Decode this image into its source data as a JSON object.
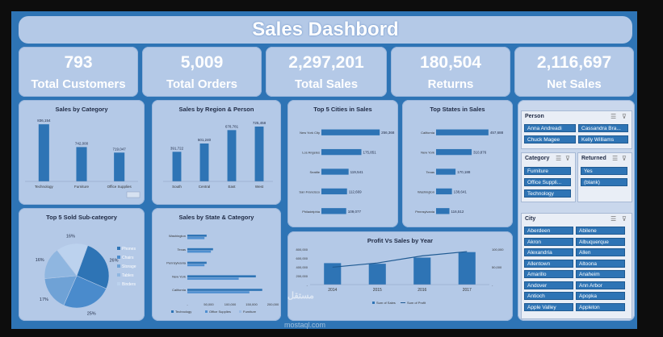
{
  "title": "Sales Dashbord",
  "kpis": [
    {
      "value": "793",
      "label": "Total Customers"
    },
    {
      "value": "5,009",
      "label": "Total Orders"
    },
    {
      "value": "2,297,201",
      "label": "Total Sales"
    },
    {
      "value": "180,504",
      "label": "Returns"
    },
    {
      "value": "2,116,697",
      "label": "Net Sales"
    }
  ],
  "colors": {
    "bar": "#2e74b5",
    "card": "#b4c9e7",
    "frame": "#2e74b5"
  },
  "chart_data": [
    {
      "type": "bar",
      "title": "Sales by Category",
      "categories": [
        "Technology",
        "Furniture",
        "Office Supplies"
      ],
      "values": [
        836154,
        742000,
        719047
      ],
      "labels": [
        "836,154",
        "742,000",
        "719,047"
      ],
      "ylim": [
        600000,
        850000
      ]
    },
    {
      "type": "bar",
      "title": "Sales by Region & Person",
      "categories": [
        "South",
        "Central",
        "East",
        "West"
      ],
      "values": [
        391722,
        501240,
        678781,
        725458
      ],
      "labels": [
        "391,722",
        "501,240",
        "678,781",
        "725,458"
      ],
      "ylim": [
        0,
        800000
      ]
    },
    {
      "type": "bar",
      "orientation": "horizontal",
      "title": "Top 5 Cities in Sales",
      "categories": [
        "New York City",
        "Los Angeles",
        "Seattle",
        "San Francisco",
        "Philadelphia"
      ],
      "values": [
        256368,
        175851,
        119541,
        112669,
        109077
      ],
      "labels": [
        "256,368",
        "175,851",
        "119,541",
        "112,669",
        "109,077"
      ],
      "xlim": [
        0,
        270000
      ]
    },
    {
      "type": "bar",
      "orientation": "horizontal",
      "title": "Top  States in Sales",
      "categories": [
        "California",
        "New York",
        "Texas",
        "Washington",
        "Pennsylvania"
      ],
      "values": [
        457688,
        310876,
        170188,
        138641,
        116512
      ],
      "labels": [
        "457,688",
        "310,876",
        "170,188",
        "138,641",
        "116,512"
      ],
      "xlim": [
        0,
        480000
      ]
    },
    {
      "type": "pie",
      "title": "Top 5 Sold Sub-category",
      "categories": [
        "Phones",
        "Chairs",
        "Storage",
        "Tables",
        "Binders"
      ],
      "values": [
        26,
        25,
        17,
        16,
        16
      ],
      "labels": [
        "26%",
        "25%",
        "17%",
        "16%",
        "16%"
      ]
    },
    {
      "type": "bar",
      "orientation": "horizontal",
      "title": "Sales by State & Category",
      "categories": [
        "Washington",
        "Texas",
        "Pennsylvania",
        "New York",
        "California"
      ],
      "series": [
        {
          "name": "Technology",
          "values": [
            45000,
            60000,
            45000,
            160000,
            175000
          ]
        },
        {
          "name": "Office Supplies",
          "values": [
            40000,
            55000,
            40000,
            120000,
            145000
          ]
        },
        {
          "name": "Furniture",
          "values": [
            0,
            0,
            0,
            0,
            0
          ]
        }
      ],
      "xticks": [
        "-",
        "50,000",
        "100,000",
        "150,000",
        "200,000"
      ],
      "xlim": [
        0,
        200000
      ]
    },
    {
      "type": "bar",
      "title": "Profit Vs Sales by Year",
      "categories": [
        "2014",
        "2015",
        "2016",
        "2017"
      ],
      "series": [
        {
          "name": "Sum of Sales",
          "values": [
            484000,
            470000,
            609000,
            733000
          ]
        },
        {
          "name": "Sum of Profit",
          "values": [
            49000,
            61000,
            81000,
            93000
          ]
        }
      ],
      "yticks_left": [
        "-",
        "200,000",
        "400,000",
        "600,000",
        "800,000"
      ],
      "yticks_right": [
        "-",
        "50,000",
        "100,000"
      ]
    }
  ],
  "slicers": {
    "person": {
      "header": "Person",
      "items": [
        "Anna Andreadi",
        "Cassandra Bra...",
        "Chuck Magee",
        "Kelly Williams"
      ]
    },
    "category": {
      "header": "Category",
      "items": [
        "Furniture",
        "Office Suppli...",
        "Technology"
      ]
    },
    "returned": {
      "header": "Returned",
      "items": [
        "Yes",
        "(blank)"
      ]
    },
    "city": {
      "header": "City",
      "items": [
        "Aberdeen",
        "Abilene",
        "Akron",
        "Albuquerque",
        "Alexandria",
        "Allen",
        "Allentown",
        "Altoona",
        "Amarillo",
        "Anaheim",
        "Andover",
        "Ann Arbor",
        "Antioch",
        "Apopka",
        "Apple Valley",
        "Appleton"
      ]
    }
  },
  "watermark": {
    "line1": "مستقل",
    "line2": "mostaql.com"
  }
}
